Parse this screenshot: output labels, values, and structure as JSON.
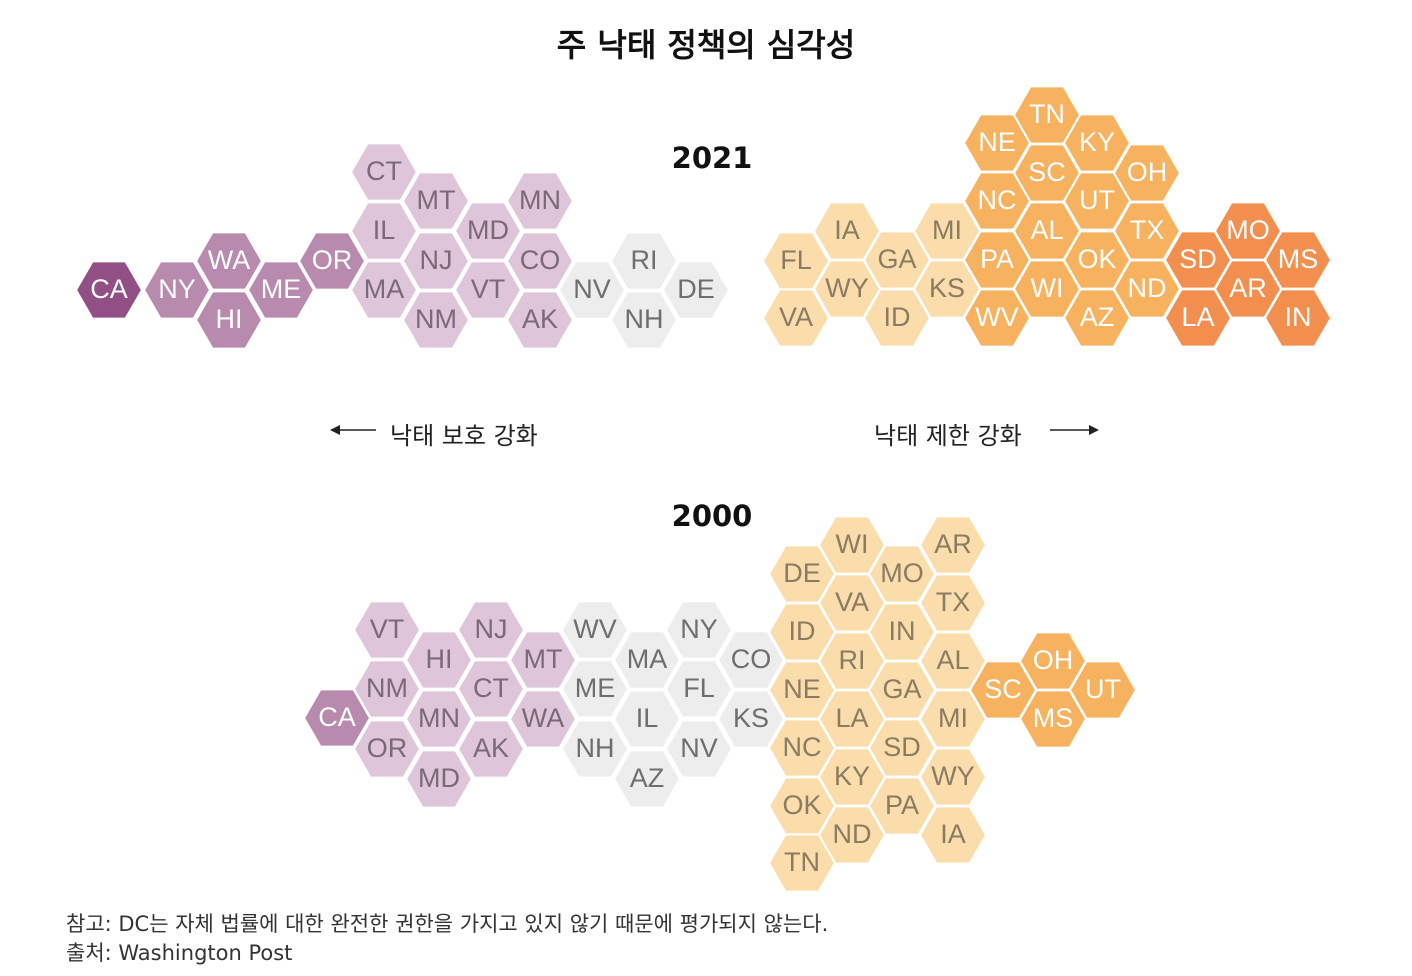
{
  "title": "주 낙태 정책의 심각성",
  "panels": [
    {
      "year": "2021",
      "hexes": [
        {
          "s": "CA",
          "c": "#914f86"
        },
        {
          "s": "NY",
          "c": "#b88aae"
        },
        {
          "s": "HI",
          "c": "#b88aae"
        },
        {
          "s": "WA",
          "c": "#b88aae"
        },
        {
          "s": "ME",
          "c": "#b88aae"
        },
        {
          "s": "OR",
          "c": "#b88aae"
        },
        {
          "s": "CT",
          "c": "#dfc5d9"
        },
        {
          "s": "IL",
          "c": "#dfc5d9"
        },
        {
          "s": "MA",
          "c": "#dfc5d9"
        },
        {
          "s": "MT",
          "c": "#dfc5d9"
        },
        {
          "s": "NJ",
          "c": "#dfc5d9"
        },
        {
          "s": "NM",
          "c": "#dfc5d9"
        },
        {
          "s": "MD",
          "c": "#dfc5d9"
        },
        {
          "s": "VT",
          "c": "#dfc5d9"
        },
        {
          "s": "MN",
          "c": "#dfc5d9"
        },
        {
          "s": "CO",
          "c": "#dfc5d9"
        },
        {
          "s": "AK",
          "c": "#dfc5d9"
        },
        {
          "s": "NV",
          "c": "#ededed"
        },
        {
          "s": "RI",
          "c": "#ededed"
        },
        {
          "s": "NH",
          "c": "#ededed"
        },
        {
          "s": "DE",
          "c": "#ededed"
        },
        {
          "s": "FL",
          "c": "#fbdcab"
        },
        {
          "s": "VA",
          "c": "#fbdcab"
        },
        {
          "s": "IA",
          "c": "#fbdcab"
        },
        {
          "s": "WY",
          "c": "#fbdcab"
        },
        {
          "s": "GA",
          "c": "#fbdcab"
        },
        {
          "s": "ID",
          "c": "#fbdcab"
        },
        {
          "s": "MI",
          "c": "#fbdcab"
        },
        {
          "s": "KS",
          "c": "#fbdcab"
        },
        {
          "s": "NE",
          "c": "#f7b25f"
        },
        {
          "s": "NC",
          "c": "#f7b25f"
        },
        {
          "s": "PA",
          "c": "#f7b25f"
        },
        {
          "s": "WV",
          "c": "#f7b25f"
        },
        {
          "s": "TN",
          "c": "#f7b25f"
        },
        {
          "s": "SC",
          "c": "#f7b25f"
        },
        {
          "s": "AL",
          "c": "#f7b25f"
        },
        {
          "s": "WI",
          "c": "#f7b25f"
        },
        {
          "s": "KY",
          "c": "#f7b25f"
        },
        {
          "s": "UT",
          "c": "#f7b25f"
        },
        {
          "s": "OK",
          "c": "#f7b25f"
        },
        {
          "s": "AZ",
          "c": "#f7b25f"
        },
        {
          "s": "OH",
          "c": "#f7b25f"
        },
        {
          "s": "TX",
          "c": "#f7b25f"
        },
        {
          "s": "ND",
          "c": "#f7b25f"
        },
        {
          "s": "SD",
          "c": "#f28f4f"
        },
        {
          "s": "LA",
          "c": "#f28f4f"
        },
        {
          "s": "MO",
          "c": "#f28f4f"
        },
        {
          "s": "AR",
          "c": "#f28f4f"
        },
        {
          "s": "MS",
          "c": "#f28f4f"
        },
        {
          "s": "IN",
          "c": "#f28f4f"
        }
      ]
    },
    {
      "year": "2000",
      "hexes": [
        {
          "s": "CA",
          "c": "#b88aae"
        },
        {
          "s": "VT",
          "c": "#dfc5d9"
        },
        {
          "s": "NM",
          "c": "#dfc5d9"
        },
        {
          "s": "OR",
          "c": "#dfc5d9"
        },
        {
          "s": "HI",
          "c": "#dfc5d9"
        },
        {
          "s": "MN",
          "c": "#dfc5d9"
        },
        {
          "s": "MD",
          "c": "#dfc5d9"
        },
        {
          "s": "NJ",
          "c": "#dfc5d9"
        },
        {
          "s": "CT",
          "c": "#dfc5d9"
        },
        {
          "s": "AK",
          "c": "#dfc5d9"
        },
        {
          "s": "MT",
          "c": "#dfc5d9"
        },
        {
          "s": "WA",
          "c": "#dfc5d9"
        },
        {
          "s": "WV",
          "c": "#ededed"
        },
        {
          "s": "ME",
          "c": "#ededed"
        },
        {
          "s": "NH",
          "c": "#ededed"
        },
        {
          "s": "MA",
          "c": "#ededed"
        },
        {
          "s": "IL",
          "c": "#ededed"
        },
        {
          "s": "AZ",
          "c": "#ededed"
        },
        {
          "s": "NY",
          "c": "#ededed"
        },
        {
          "s": "FL",
          "c": "#ededed"
        },
        {
          "s": "NV",
          "c": "#ededed"
        },
        {
          "s": "CO",
          "c": "#ededed"
        },
        {
          "s": "KS",
          "c": "#ededed"
        },
        {
          "s": "DE",
          "c": "#fbdcab"
        },
        {
          "s": "ID",
          "c": "#fbdcab"
        },
        {
          "s": "NE",
          "c": "#fbdcab"
        },
        {
          "s": "NC",
          "c": "#fbdcab"
        },
        {
          "s": "OK",
          "c": "#fbdcab"
        },
        {
          "s": "TN",
          "c": "#fbdcab"
        },
        {
          "s": "WI",
          "c": "#fbdcab"
        },
        {
          "s": "VA",
          "c": "#fbdcab"
        },
        {
          "s": "RI",
          "c": "#fbdcab"
        },
        {
          "s": "LA",
          "c": "#fbdcab"
        },
        {
          "s": "KY",
          "c": "#fbdcab"
        },
        {
          "s": "ND",
          "c": "#fbdcab"
        },
        {
          "s": "MO",
          "c": "#fbdcab"
        },
        {
          "s": "IN",
          "c": "#fbdcab"
        },
        {
          "s": "GA",
          "c": "#fbdcab"
        },
        {
          "s": "SD",
          "c": "#fbdcab"
        },
        {
          "s": "PA",
          "c": "#fbdcab"
        },
        {
          "s": "AR",
          "c": "#fbdcab"
        },
        {
          "s": "TX",
          "c": "#fbdcab"
        },
        {
          "s": "AL",
          "c": "#fbdcab"
        },
        {
          "s": "MI",
          "c": "#fbdcab"
        },
        {
          "s": "WY",
          "c": "#fbdcab"
        },
        {
          "s": "IA",
          "c": "#fbdcab"
        },
        {
          "s": "SC",
          "c": "#f7b25f"
        },
        {
          "s": "OH",
          "c": "#f7b25f"
        },
        {
          "s": "MS",
          "c": "#f7b25f"
        },
        {
          "s": "UT",
          "c": "#f7b25f"
        }
      ]
    }
  ],
  "legend": {
    "left_label": "낙태 보호 강화",
    "right_label": "낙태 제한 강화"
  },
  "footer": {
    "note": "참고: DC는 자체 법률에 대한 완전한 권한을 가지고 있지 않기 때문에 평가되지 않는다.",
    "source": "출처: Washington Post"
  }
}
